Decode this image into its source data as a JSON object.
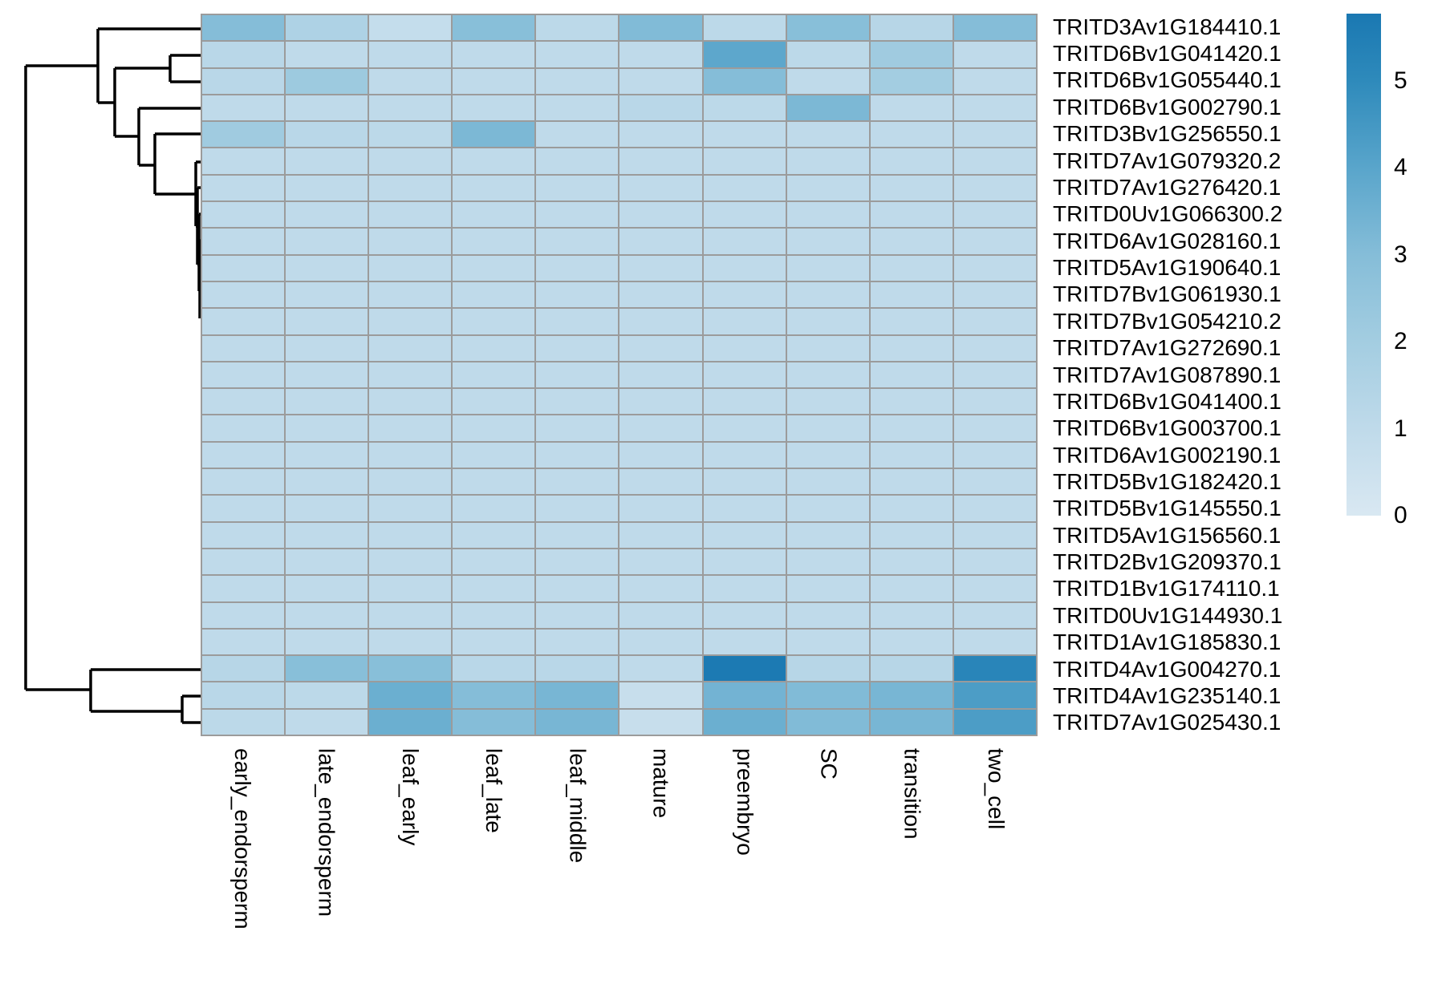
{
  "figure": {
    "background": "#ffffff",
    "grid_color": "#9b9b9b",
    "dendrogram_color": "#000000"
  },
  "chart_data": {
    "type": "heatmap",
    "title": "",
    "xlabel": "",
    "ylabel": "",
    "legend_position": "right",
    "grid": true,
    "columns": [
      "early_endorsperm",
      "late_endorsperm",
      "leaf_early",
      "leaf_late",
      "leaf_middle",
      "mature",
      "preembryo",
      "SC",
      "transition",
      "two_cell"
    ],
    "rows": [
      "TRITD3Av1G184410.1",
      "TRITD6Bv1G041420.1",
      "TRITD6Bv1G055440.1",
      "TRITD6Bv1G002790.1",
      "TRITD3Bv1G256550.1",
      "TRITD7Av1G079320.2",
      "TRITD7Av1G276420.1",
      "TRITD0Uv1G066300.2",
      "TRITD6Av1G028160.1",
      "TRITD5Av1G190640.1",
      "TRITD7Bv1G061930.1",
      "TRITD7Bv1G054210.2",
      "TRITD7Av1G272690.1",
      "TRITD7Av1G087890.1",
      "TRITD6Bv1G041400.1",
      "TRITD6Bv1G003700.1",
      "TRITD6Av1G002190.1",
      "TRITD5Bv1G182420.1",
      "TRITD5Bv1G145550.1",
      "TRITD5Av1G156560.1",
      "TRITD2Bv1G209370.1",
      "TRITD1Bv1G174110.1",
      "TRITD0Uv1G144930.1",
      "TRITD1Av1G185830.1",
      "TRITD4Av1G004270.1",
      "TRITD4Av1G235140.1",
      "TRITD7Av1G025430.1"
    ],
    "matrix": [
      [
        3.0,
        1.6,
        0.8,
        2.9,
        1.1,
        3.1,
        1.1,
        2.9,
        1.3,
        3.0
      ],
      [
        1.2,
        1.0,
        1.0,
        1.0,
        1.0,
        1.0,
        3.9,
        1.1,
        2.1,
        1.0
      ],
      [
        1.2,
        2.2,
        1.0,
        1.0,
        1.0,
        1.0,
        3.0,
        1.0,
        2.0,
        1.0
      ],
      [
        1.0,
        1.0,
        1.0,
        1.0,
        1.0,
        1.2,
        1.1,
        3.2,
        1.0,
        1.0
      ],
      [
        2.1,
        1.2,
        1.1,
        3.2,
        1.0,
        1.0,
        1.0,
        1.0,
        1.0,
        1.0
      ],
      [
        1.0,
        1.0,
        1.0,
        1.0,
        1.0,
        1.0,
        1.0,
        1.0,
        1.0,
        1.0
      ],
      [
        1.0,
        1.0,
        1.0,
        1.0,
        1.0,
        1.0,
        1.0,
        1.0,
        1.0,
        1.0
      ],
      [
        1.0,
        1.0,
        1.0,
        1.0,
        1.0,
        1.0,
        1.0,
        1.0,
        1.0,
        1.0
      ],
      [
        1.0,
        1.0,
        1.0,
        1.0,
        1.0,
        1.0,
        1.0,
        1.0,
        1.0,
        1.0
      ],
      [
        1.0,
        1.0,
        1.0,
        1.0,
        1.0,
        1.0,
        1.0,
        1.0,
        1.0,
        1.0
      ],
      [
        1.0,
        1.0,
        1.0,
        1.0,
        1.0,
        1.0,
        1.0,
        1.0,
        1.0,
        1.0
      ],
      [
        1.0,
        1.0,
        1.0,
        1.0,
        1.0,
        1.0,
        1.0,
        1.0,
        1.0,
        1.0
      ],
      [
        1.0,
        1.0,
        1.0,
        1.0,
        1.0,
        1.0,
        1.0,
        1.0,
        1.0,
        1.0
      ],
      [
        1.0,
        1.0,
        1.0,
        1.0,
        1.0,
        1.0,
        1.0,
        1.0,
        1.0,
        1.0
      ],
      [
        1.0,
        1.0,
        1.0,
        1.0,
        1.0,
        1.0,
        1.0,
        1.0,
        1.0,
        1.0
      ],
      [
        1.0,
        1.0,
        1.0,
        1.0,
        1.0,
        1.0,
        1.0,
        1.0,
        1.0,
        1.0
      ],
      [
        1.0,
        1.0,
        1.0,
        1.0,
        1.0,
        1.0,
        1.0,
        1.0,
        1.0,
        1.0
      ],
      [
        1.0,
        1.0,
        1.0,
        1.0,
        1.0,
        1.0,
        1.0,
        1.0,
        1.0,
        1.0
      ],
      [
        1.0,
        1.0,
        1.0,
        1.0,
        1.0,
        1.0,
        1.0,
        1.0,
        1.0,
        1.0
      ],
      [
        1.0,
        1.0,
        1.0,
        1.0,
        1.0,
        1.0,
        1.0,
        1.0,
        1.0,
        1.0
      ],
      [
        1.0,
        1.0,
        1.0,
        1.0,
        1.0,
        1.0,
        1.0,
        1.0,
        1.0,
        1.0
      ],
      [
        1.0,
        1.0,
        1.0,
        1.0,
        1.0,
        1.0,
        1.0,
        1.0,
        1.0,
        1.0
      ],
      [
        1.0,
        1.0,
        1.0,
        1.0,
        1.0,
        1.0,
        1.0,
        1.0,
        1.0,
        1.0
      ],
      [
        1.0,
        1.0,
        1.0,
        1.0,
        1.0,
        1.0,
        1.0,
        1.0,
        1.0,
        1.0
      ],
      [
        1.3,
        2.9,
        2.9,
        1.2,
        1.2,
        1.0,
        5.7,
        1.3,
        1.3,
        5.2
      ],
      [
        1.2,
        1.1,
        3.6,
        3.0,
        3.3,
        0.7,
        3.4,
        3.1,
        3.3,
        4.3
      ],
      [
        1.1,
        1.0,
        3.6,
        3.0,
        3.3,
        0.7,
        3.6,
        3.1,
        3.3,
        4.3
      ]
    ],
    "value_range": [
      0,
      5.77
    ],
    "legend_ticks": [
      0,
      1,
      2,
      3,
      4,
      5
    ],
    "color_scale": {
      "stops": [
        {
          "value": 0.0,
          "color": "#d9e8f2"
        },
        {
          "value": 1.0,
          "color": "#bfdaea"
        },
        {
          "value": 2.0,
          "color": "#a3cde1"
        },
        {
          "value": 3.0,
          "color": "#85bdd8"
        },
        {
          "value": 4.0,
          "color": "#59a5cb"
        },
        {
          "value": 5.0,
          "color": "#2e8abb"
        },
        {
          "value": 5.77,
          "color": "#1a78b2"
        }
      ]
    },
    "dendrogram": {
      "orientation": "left",
      "segments": [
        [
          32,
          82,
          122,
          82
        ],
        [
          32,
          82,
          32,
          860
        ],
        [
          32,
          860,
          113,
          860
        ],
        [
          122,
          36,
          122,
          128
        ],
        [
          122,
          36,
          250,
          36
        ],
        [
          122,
          128,
          143,
          128
        ],
        [
          143,
          85,
          143,
          170
        ],
        [
          143,
          85,
          212,
          85
        ],
        [
          143,
          170,
          173,
          170
        ],
        [
          212,
          69,
          212,
          102
        ],
        [
          212,
          69,
          250,
          69
        ],
        [
          212,
          102,
          250,
          102
        ],
        [
          173,
          135,
          173,
          206
        ],
        [
          173,
          135,
          250,
          135
        ],
        [
          173,
          206,
          193,
          206
        ],
        [
          193,
          167,
          193,
          242
        ],
        [
          193,
          167,
          250,
          167
        ],
        [
          193,
          242,
          244,
          242
        ],
        [
          244,
          202,
          244,
          282
        ],
        [
          244,
          202,
          250,
          202
        ],
        [
          244,
          282,
          246,
          282
        ],
        [
          246,
          234,
          246,
          330
        ],
        [
          246,
          234,
          250,
          234
        ],
        [
          246,
          330,
          248,
          330
        ],
        [
          248,
          267,
          248,
          363
        ],
        [
          248,
          267,
          250,
          267
        ],
        [
          248,
          363,
          249,
          363
        ],
        [
          249,
          300,
          249,
          397
        ],
        [
          249,
          300,
          250,
          300
        ],
        [
          113,
          835,
          113,
          887
        ],
        [
          113,
          835,
          250,
          835
        ],
        [
          113,
          887,
          227,
          887
        ],
        [
          227,
          868,
          227,
          901
        ],
        [
          227,
          868,
          250,
          868
        ],
        [
          227,
          901,
          250,
          901
        ]
      ]
    }
  }
}
